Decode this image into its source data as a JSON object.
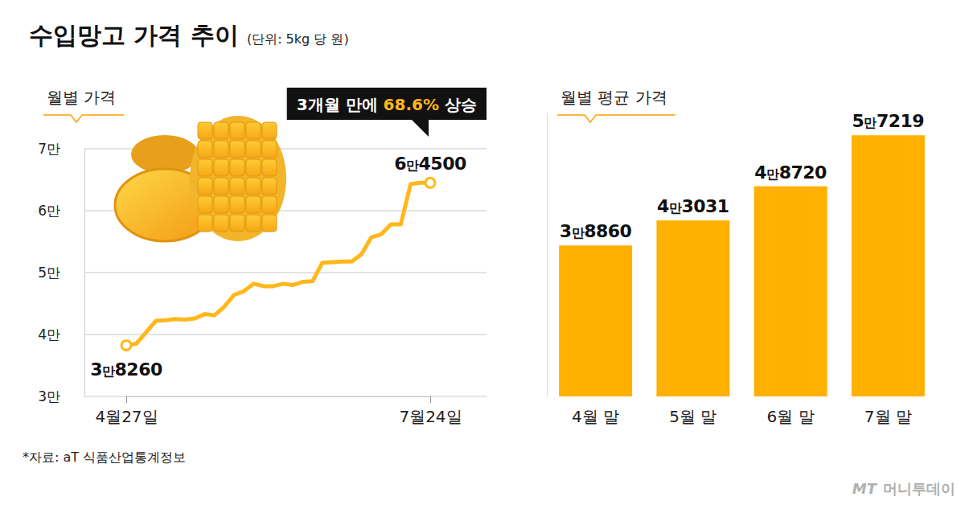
{
  "header": {
    "title": "수입망고 가격 추이",
    "unit": "(단위: 5kg 당 원)"
  },
  "chart_data": [
    {
      "type": "line",
      "subtitle": "월별 가격",
      "annotation": [
        "3개월 만에",
        "68.6%",
        "상승"
      ],
      "categories": [
        "4월27일",
        null,
        null,
        null,
        null,
        null,
        null,
        null,
        null,
        null,
        null,
        null,
        null,
        null,
        null,
        null,
        null,
        null,
        null,
        null,
        null,
        null,
        null,
        null,
        null,
        null,
        null,
        null,
        null,
        null,
        null,
        "7월24일"
      ],
      "values": [
        38260,
        38500,
        40300,
        42200,
        42300,
        42500,
        42400,
        42600,
        43300,
        43100,
        44500,
        46400,
        47000,
        48200,
        47800,
        47800,
        48200,
        48000,
        48500,
        48600,
        51600,
        51700,
        51800,
        51800,
        53000,
        55700,
        56200,
        57800,
        57800,
        64300,
        64500,
        64500
      ],
      "value_labels": [
        "3만8260",
        null,
        null,
        null,
        null,
        null,
        null,
        null,
        null,
        null,
        null,
        null,
        null,
        null,
        null,
        null,
        null,
        null,
        null,
        null,
        null,
        null,
        null,
        null,
        null,
        null,
        null,
        null,
        null,
        null,
        null,
        "6만4500"
      ],
      "color": "#FFB71B",
      "ylim": [
        30000,
        70000
      ],
      "yticks": [
        {
          "value": 30000,
          "label": "3만"
        },
        {
          "value": 40000,
          "label": "4만"
        },
        {
          "value": 50000,
          "label": "5만"
        },
        {
          "value": 60000,
          "label": "6만"
        },
        {
          "value": 70000,
          "label": "7만"
        }
      ],
      "grid": true,
      "data_labels": true
    },
    {
      "type": "bar",
      "subtitle": "월별 평균 가격",
      "categories": [
        "4월 말",
        "5월 말",
        "6월 말",
        "7월 말"
      ],
      "values": [
        38860,
        43031,
        48720,
        57219
      ],
      "value_labels": [
        "3만8860",
        "4만3031",
        "4만8720",
        "5만7219"
      ],
      "color": "#FFB000",
      "ylim": [
        13700,
        61000
      ],
      "grid": false,
      "data_labels": true,
      "tick_labels": "x"
    }
  ],
  "source": "*자료: aT 식품산업통계정보",
  "credit": [
    "MT",
    "머니투데이"
  ]
}
